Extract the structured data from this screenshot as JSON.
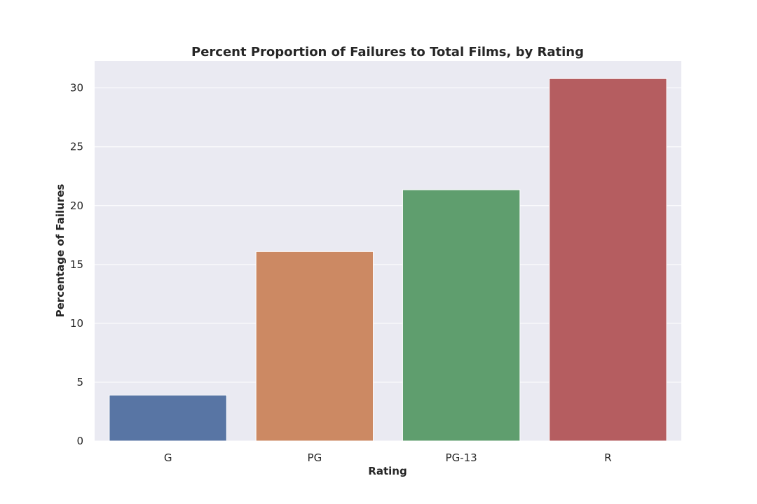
{
  "chart_data": {
    "type": "bar",
    "title": "Percent Proportion of Failures to Total Films, by Rating",
    "xlabel": "Rating",
    "ylabel": "Percentage of Failures",
    "categories": [
      "G",
      "PG",
      "PG-13",
      "R"
    ],
    "values": [
      3.9,
      16.1,
      21.35,
      30.8
    ],
    "colors": [
      "#5875a4",
      "#cc8963",
      "#5f9e6e",
      "#b55d60"
    ],
    "yticks": [
      0,
      5,
      10,
      15,
      20,
      25,
      30
    ],
    "ylim": [
      0,
      32.3
    ],
    "grid": true,
    "background": "#eaeaf2"
  }
}
